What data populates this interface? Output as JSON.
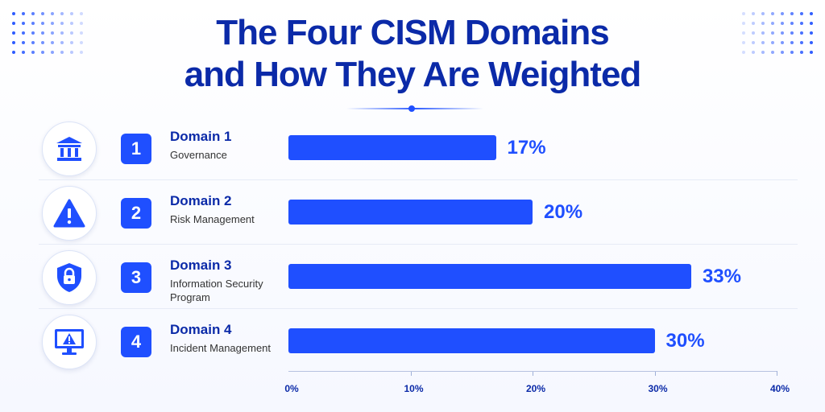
{
  "title_line1": "The Four CISM Domains",
  "title_line2": "and How They Are Weighted",
  "colors": {
    "accent": "#1f4fff",
    "title": "#0b2aa8",
    "text": "#333333"
  },
  "chart_data": {
    "type": "bar",
    "orientation": "horizontal",
    "categories": [
      "Domain 1",
      "Domain 2",
      "Domain 3",
      "Domain 4"
    ],
    "values": [
      17,
      20,
      33,
      30
    ],
    "value_labels": [
      "17%",
      "20%",
      "33%",
      "30%"
    ],
    "xlim": [
      0,
      40
    ],
    "xticks": [
      "0%",
      "10%",
      "20%",
      "30%",
      "40%"
    ],
    "grid": false
  },
  "domains": [
    {
      "number": "1",
      "title": "Domain 1",
      "subtitle": "Governance",
      "icon": "bank-icon"
    },
    {
      "number": "2",
      "title": "Domain 2",
      "subtitle": "Risk Management",
      "icon": "warning-icon"
    },
    {
      "number": "3",
      "title": "Domain 3",
      "subtitle": "Information Security Program",
      "icon": "shield-lock-icon"
    },
    {
      "number": "4",
      "title": "Domain 4",
      "subtitle": "Incident Management",
      "icon": "monitor-alert-icon"
    }
  ]
}
